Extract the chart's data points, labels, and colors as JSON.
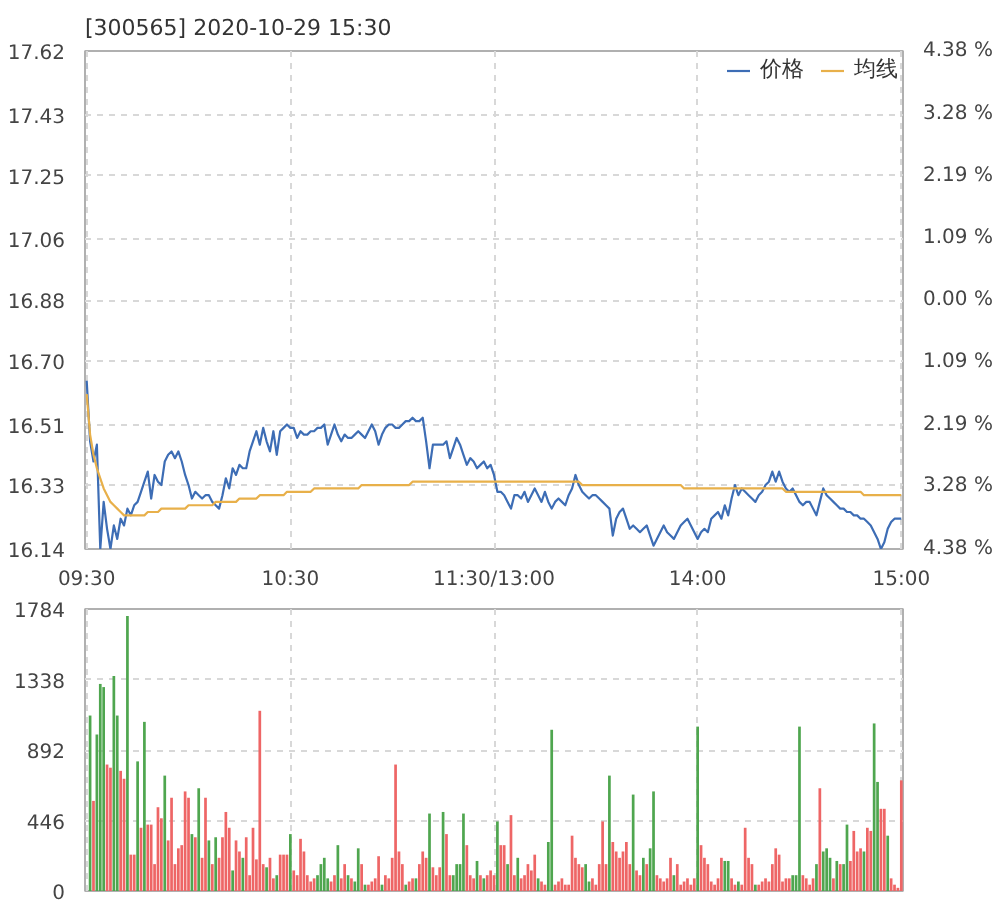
{
  "chart_data": [
    {
      "type": "line",
      "title": "[300565] 2020-10-29 15:30",
      "categories": [
        "09:30",
        null,
        null,
        null,
        null,
        null,
        null,
        null,
        null,
        null,
        null,
        null,
        null,
        null,
        null,
        null,
        null,
        null,
        null,
        null,
        null,
        null,
        null,
        null,
        null,
        null,
        null,
        null,
        null,
        null,
        null,
        null,
        null,
        null,
        null,
        null,
        null,
        null,
        null,
        null,
        null,
        null,
        null,
        null,
        null,
        null,
        null,
        null,
        null,
        null,
        null,
        null,
        null,
        null,
        null,
        null,
        null,
        null,
        null,
        null,
        "10:30",
        null,
        null,
        null,
        null,
        null,
        null,
        null,
        null,
        null,
        null,
        null,
        null,
        null,
        null,
        null,
        null,
        null,
        null,
        null,
        null,
        null,
        null,
        null,
        null,
        null,
        null,
        null,
        null,
        null,
        null,
        null,
        null,
        null,
        null,
        null,
        null,
        null,
        null,
        null,
        null,
        null,
        null,
        null,
        null,
        null,
        null,
        null,
        null,
        null,
        null,
        null,
        null,
        null,
        null,
        null,
        null,
        null,
        null,
        null,
        "11:30/13:00",
        null,
        null,
        null,
        null,
        null,
        null,
        null,
        null,
        null,
        null,
        null,
        null,
        null,
        null,
        null,
        null,
        null,
        null,
        null,
        null,
        null,
        null,
        null,
        null,
        null,
        null,
        null,
        null,
        null,
        null,
        null,
        null,
        null,
        null,
        null,
        null,
        null,
        null,
        null,
        null,
        null,
        null,
        null,
        null,
        null,
        null,
        null,
        null,
        null,
        null,
        null,
        null,
        null,
        null,
        null,
        null,
        null,
        null,
        null,
        "14:00",
        null,
        null,
        null,
        null,
        null,
        null,
        null,
        null,
        null,
        null,
        null,
        null,
        null,
        null,
        null,
        null,
        null,
        null,
        null,
        null,
        null,
        null,
        null,
        null,
        null,
        null,
        null,
        null,
        null,
        null,
        null,
        null,
        null,
        null,
        null,
        null,
        null,
        null,
        null,
        null,
        null,
        null,
        null,
        null,
        null,
        null,
        null,
        null,
        null,
        null,
        null,
        null,
        null,
        null,
        null,
        null,
        null,
        null,
        null,
        "15:00"
      ],
      "ylim": [
        16.14,
        17.62
      ],
      "yticks": [
        17.62,
        17.43,
        17.25,
        17.06,
        16.88,
        {
          "value": 16.7,
          "label": "16.70"
        },
        16.51,
        16.33,
        16.14
      ],
      "y2lim": [
        -4.38,
        4.38
      ],
      "y2ticks": [
        {
          "value": 4.38,
          "label": "4.38 %"
        },
        {
          "value": 3.28,
          "label": "3.28 %"
        },
        {
          "value": 2.19,
          "label": "2.19 %"
        },
        {
          "value": 1.09,
          "label": "1.09 %"
        },
        {
          "value": 0,
          "label": "0.00 %"
        },
        {
          "value": -1.09,
          "label": "1.09 %"
        },
        {
          "value": -2.19,
          "label": "2.19 %"
        },
        {
          "value": -3.28,
          "label": "3.28 %"
        },
        {
          "value": -4.38,
          "label": "4.38 %"
        }
      ],
      "grid": true,
      "legend": "top right",
      "series": [
        {
          "name": "价格",
          "color": "#3d6db5",
          "values": [
            16.64,
            16.46,
            16.4,
            16.45,
            16.14,
            16.28,
            16.2,
            16.14,
            16.21,
            16.17,
            16.23,
            16.21,
            16.26,
            16.24,
            16.27,
            16.28,
            16.31,
            16.34,
            16.37,
            16.29,
            16.36,
            16.34,
            16.33,
            16.4,
            16.42,
            16.43,
            16.41,
            16.43,
            16.4,
            16.36,
            16.33,
            16.29,
            16.31,
            16.3,
            16.29,
            16.3,
            16.3,
            16.28,
            16.27,
            16.26,
            16.3,
            16.35,
            16.32,
            16.38,
            16.36,
            16.39,
            16.38,
            16.38,
            16.43,
            16.46,
            16.49,
            16.45,
            16.5,
            16.46,
            16.43,
            16.49,
            16.42,
            16.49,
            16.5,
            16.51,
            16.5,
            16.5,
            16.47,
            16.49,
            16.48,
            16.48,
            16.49,
            16.49,
            16.5,
            16.5,
            16.51,
            16.45,
            16.48,
            16.51,
            16.48,
            16.46,
            16.48,
            16.47,
            16.47,
            16.48,
            16.49,
            16.48,
            16.47,
            16.49,
            16.51,
            16.49,
            16.45,
            16.48,
            16.5,
            16.51,
            16.51,
            16.5,
            16.5,
            16.51,
            16.52,
            16.52,
            16.53,
            16.52,
            16.52,
            16.53,
            16.46,
            16.38,
            16.45,
            16.45,
            16.45,
            16.45,
            16.46,
            16.41,
            16.44,
            16.47,
            16.45,
            16.42,
            16.39,
            16.41,
            16.4,
            16.38,
            16.39,
            16.4,
            16.38,
            16.39,
            16.36,
            16.31,
            16.31,
            16.3,
            16.28,
            16.26,
            16.3,
            16.3,
            16.29,
            16.31,
            16.28,
            16.3,
            16.32,
            16.3,
            16.28,
            16.31,
            16.28,
            16.26,
            16.28,
            16.29,
            16.28,
            16.27,
            16.3,
            16.32,
            16.36,
            16.33,
            16.31,
            16.3,
            16.29,
            16.3,
            16.3,
            16.29,
            16.28,
            16.27,
            16.26,
            16.18,
            16.23,
            16.25,
            16.26,
            16.23,
            16.2,
            16.21,
            16.2,
            16.19,
            16.2,
            16.21,
            16.18,
            16.15,
            16.17,
            16.19,
            16.21,
            16.19,
            16.18,
            16.17,
            16.19,
            16.21,
            16.22,
            16.23,
            16.21,
            16.19,
            16.17,
            16.19,
            16.2,
            16.19,
            16.23,
            16.24,
            16.25,
            16.23,
            16.27,
            16.24,
            16.29,
            16.33,
            16.3,
            16.32,
            16.31,
            16.3,
            16.29,
            16.28,
            16.3,
            16.31,
            16.33,
            16.34,
            16.37,
            16.34,
            16.37,
            16.34,
            16.32,
            16.31,
            16.32,
            16.3,
            16.28,
            16.27,
            16.28,
            16.28,
            16.26,
            16.24,
            16.28,
            16.32,
            16.3,
            16.29,
            16.28,
            16.27,
            16.26,
            16.26,
            16.25,
            16.25,
            16.24,
            16.24,
            16.23,
            16.23,
            16.22,
            16.21,
            16.19,
            16.17,
            16.14,
            16.16,
            16.2,
            16.22,
            16.23,
            16.23,
            16.23
          ]
        },
        {
          "name": "均线",
          "color": "#e8b04a",
          "values": [
            16.6,
            16.48,
            16.42,
            16.38,
            16.35,
            16.32,
            16.3,
            16.28,
            16.27,
            16.26,
            16.25,
            16.24,
            16.24,
            16.24,
            16.24,
            16.24,
            16.24,
            16.24,
            16.25,
            16.25,
            16.25,
            16.25,
            16.26,
            16.26,
            16.26,
            16.26,
            16.26,
            16.26,
            16.26,
            16.26,
            16.27,
            16.27,
            16.27,
            16.27,
            16.27,
            16.27,
            16.27,
            16.27,
            16.28,
            16.28,
            16.28,
            16.28,
            16.28,
            16.28,
            16.28,
            16.29,
            16.29,
            16.29,
            16.29,
            16.29,
            16.29,
            16.3,
            16.3,
            16.3,
            16.3,
            16.3,
            16.3,
            16.3,
            16.3,
            16.31,
            16.31,
            16.31,
            16.31,
            16.31,
            16.31,
            16.31,
            16.31,
            16.32,
            16.32,
            16.32,
            16.32,
            16.32,
            16.32,
            16.32,
            16.32,
            16.32,
            16.32,
            16.32,
            16.32,
            16.32,
            16.32,
            16.33,
            16.33,
            16.33,
            16.33,
            16.33,
            16.33,
            16.33,
            16.33,
            16.33,
            16.33,
            16.33,
            16.33,
            16.33,
            16.33,
            16.33,
            16.34,
            16.34,
            16.34,
            16.34,
            16.34,
            16.34,
            16.34,
            16.34,
            16.34,
            16.34,
            16.34,
            16.34,
            16.34,
            16.34,
            16.34,
            16.34,
            16.34,
            16.34,
            16.34,
            16.34,
            16.34,
            16.34,
            16.34,
            16.34,
            16.34,
            16.34,
            16.34,
            16.34,
            16.34,
            16.34,
            16.34,
            16.34,
            16.34,
            16.34,
            16.34,
            16.34,
            16.34,
            16.34,
            16.34,
            16.34,
            16.34,
            16.34,
            16.34,
            16.34,
            16.34,
            16.34,
            16.34,
            16.34,
            16.34,
            16.34,
            16.33,
            16.33,
            16.33,
            16.33,
            16.33,
            16.33,
            16.33,
            16.33,
            16.33,
            16.33,
            16.33,
            16.33,
            16.33,
            16.33,
            16.33,
            16.33,
            16.33,
            16.33,
            16.33,
            16.33,
            16.33,
            16.33,
            16.33,
            16.33,
            16.33,
            16.33,
            16.33,
            16.33,
            16.33,
            16.33,
            16.32,
            16.32,
            16.32,
            16.32,
            16.32,
            16.32,
            16.32,
            16.32,
            16.32,
            16.32,
            16.32,
            16.32,
            16.32,
            16.32,
            16.32,
            16.32,
            16.32,
            16.32,
            16.32,
            16.32,
            16.32,
            16.32,
            16.32,
            16.32,
            16.32,
            16.32,
            16.32,
            16.32,
            16.32,
            16.32,
            16.31,
            16.31,
            16.31,
            16.31,
            16.31,
            16.31,
            16.31,
            16.31,
            16.31,
            16.31,
            16.31,
            16.31,
            16.31,
            16.31,
            16.31,
            16.31,
            16.31,
            16.31,
            16.31,
            16.31,
            16.31,
            16.31,
            16.31,
            16.3,
            16.3,
            16.3,
            16.3,
            16.3,
            16.3,
            16.3,
            16.3,
            16.3,
            16.3,
            16.3,
            16.3
          ]
        }
      ]
    },
    {
      "type": "bar",
      "ylim": [
        0,
        1784
      ],
      "yticks": [
        0,
        446,
        892,
        1338,
        1784
      ],
      "grid": true,
      "categories": [
        null,
        null,
        null,
        null,
        null,
        null,
        null,
        null,
        null,
        null,
        null,
        null,
        null,
        null,
        null,
        null,
        null,
        null,
        null,
        null,
        null,
        null,
        null,
        null,
        null,
        null,
        null,
        null,
        null,
        null,
        null,
        null,
        null,
        null,
        null,
        null,
        null,
        null,
        null,
        null,
        null,
        null,
        null,
        null,
        null,
        null,
        null,
        null,
        null,
        null,
        null,
        null,
        null,
        null,
        null,
        null,
        null,
        null,
        null,
        null,
        null,
        null,
        null,
        null,
        null,
        null,
        null,
        null,
        null,
        null,
        null,
        null,
        null,
        null,
        null,
        null,
        null,
        null,
        null,
        null,
        null,
        null,
        null,
        null,
        null,
        null,
        null,
        null,
        null,
        null,
        null,
        null,
        null,
        null,
        null,
        null,
        null,
        null,
        null,
        null,
        null,
        null,
        null,
        null,
        null,
        null,
        null,
        null,
        null,
        null,
        null,
        null,
        null,
        null,
        null,
        null,
        null,
        null,
        null,
        null,
        null,
        null,
        null,
        null,
        null,
        null,
        null,
        null,
        null,
        null,
        null,
        null,
        null,
        null,
        null,
        null,
        null,
        null,
        null,
        null,
        null,
        null,
        null,
        null,
        null,
        null,
        null,
        null,
        null,
        null,
        null,
        null,
        null,
        null,
        null,
        null,
        null,
        null,
        null,
        null,
        null,
        null,
        null,
        null,
        null,
        null,
        null,
        null,
        null,
        null,
        null,
        null,
        null,
        null,
        null,
        null,
        null,
        null,
        null,
        null,
        null,
        null,
        null,
        null,
        null,
        null,
        null,
        null,
        null,
        null,
        null,
        null,
        null,
        null,
        null,
        null,
        null,
        null,
        null,
        null,
        null,
        null,
        null,
        null,
        null,
        null,
        null,
        null,
        null,
        null,
        null,
        null,
        null,
        null,
        null,
        null,
        null,
        null,
        null,
        null,
        null,
        null,
        null,
        null,
        null,
        null,
        null,
        null,
        null,
        null,
        null,
        null,
        null,
        null,
        null,
        null,
        null,
        null,
        null,
        null,
        null
      ],
      "values": [
        null,
        1110,
        570,
        990,
        1310,
        1290,
        800,
        780,
        1360,
        1110,
        760,
        710,
        1740,
        230,
        230,
        820,
        400,
        1070,
        420,
        420,
        170,
        530,
        460,
        730,
        320,
        590,
        170,
        270,
        290,
        630,
        590,
        360,
        340,
        650,
        210,
        590,
        320,
        170,
        340,
        210,
        340,
        500,
        400,
        130,
        320,
        250,
        210,
        340,
        100,
        400,
        200,
        1140,
        170,
        150,
        210,
        80,
        100,
        230,
        230,
        230,
        360,
        130,
        100,
        330,
        250,
        100,
        60,
        80,
        100,
        170,
        210,
        80,
        60,
        100,
        290,
        80,
        170,
        100,
        80,
        60,
        270,
        170,
        40,
        40,
        60,
        80,
        220,
        40,
        100,
        80,
        210,
        800,
        250,
        170,
        40,
        60,
        80,
        80,
        170,
        250,
        210,
        490,
        150,
        100,
        150,
        500,
        360,
        100,
        100,
        170,
        170,
        490,
        290,
        100,
        80,
        190,
        100,
        80,
        100,
        130,
        100,
        440,
        290,
        290,
        170,
        480,
        100,
        210,
        80,
        100,
        170,
        130,
        230,
        80,
        60,
        40,
        310,
        1020,
        40,
        60,
        80,
        40,
        40,
        350,
        210,
        170,
        150,
        170,
        60,
        80,
        40,
        170,
        440,
        170,
        730,
        310,
        250,
        210,
        250,
        310,
        170,
        610,
        130,
        100,
        210,
        170,
        270,
        630,
        100,
        80,
        60,
        80,
        210,
        100,
        170,
        40,
        60,
        80,
        40,
        80,
        1040,
        290,
        210,
        170,
        60,
        40,
        80,
        210,
        190,
        190,
        80,
        40,
        60,
        40,
        400,
        210,
        170,
        40,
        40,
        60,
        80,
        60,
        170,
        270,
        230,
        60,
        80,
        80,
        100,
        100,
        1040,
        100,
        80,
        40,
        80,
        170,
        650,
        250,
        270,
        210,
        80,
        190,
        170,
        170,
        420,
        190,
        380,
        250,
        270,
        250,
        400,
        380,
        1060,
        690,
        520,
        520,
        350,
        80,
        40,
        20,
        700
      ],
      "colors": [
        null,
        "#4fa64f",
        "#ee6666",
        "#4fa64f",
        "#4fa64f",
        "#4fa64f",
        "#ee6666",
        "#ee6666",
        "#4fa64f",
        "#4fa64f",
        "#ee6666",
        "#ee6666",
        "#4fa64f",
        "#ee6666",
        "#ee6666",
        "#4fa64f",
        "#ee6666",
        "#4fa64f",
        "#ee6666",
        "#ee6666",
        "#ee6666",
        "#ee6666",
        "#ee6666",
        "#4fa64f",
        "#ee6666",
        "#ee6666",
        "#ee6666",
        "#ee6666",
        "#ee6666",
        "#ee6666",
        "#ee6666",
        "#4fa64f",
        "#ee6666",
        "#4fa64f",
        "#ee6666",
        "#ee6666",
        "#4fa64f",
        "#ee6666",
        "#4fa64f",
        "#ee6666",
        "#ee6666",
        "#ee6666",
        "#ee6666",
        "#4fa64f",
        "#ee6666",
        "#ee6666",
        "#4fa64f",
        "#ee6666",
        "#ee6666",
        "#ee6666",
        "#ee6666",
        "#ee6666",
        "#ee6666",
        "#4fa64f",
        "#ee6666",
        "#ee6666",
        "#4fa64f",
        "#ee6666",
        "#ee6666",
        "#ee6666",
        "#4fa64f",
        "#ee6666",
        "#ee6666",
        "#ee6666",
        "#ee6666",
        "#ee6666",
        "#ee6666",
        "#ee6666",
        "#4fa64f",
        "#4fa64f",
        "#4fa64f",
        "#4fa64f",
        "#ee6666",
        "#ee6666",
        "#4fa64f",
        "#ee6666",
        "#ee6666",
        "#4fa64f",
        "#ee6666",
        "#4fa64f",
        "#4fa64f",
        "#ee6666",
        "#4fa64f",
        "#ee6666",
        "#ee6666",
        "#ee6666",
        "#ee6666",
        "#4fa64f",
        "#ee6666",
        "#ee6666",
        "#ee6666",
        "#ee6666",
        "#ee6666",
        "#ee6666",
        "#4fa64f",
        "#ee6666",
        "#ee6666",
        "#4fa64f",
        "#ee6666",
        "#ee6666",
        "#ee6666",
        "#4fa64f",
        "#ee6666",
        "#ee6666",
        "#ee6666",
        "#4fa64f",
        "#ee6666",
        "#ee6666",
        "#4fa64f",
        "#4fa64f",
        "#4fa64f",
        "#4fa64f",
        "#ee6666",
        "#ee6666",
        "#ee6666",
        "#4fa64f",
        "#ee6666",
        "#4fa64f",
        "#ee6666",
        "#ee6666",
        "#ee6666",
        "#4fa64f",
        "#ee6666",
        "#ee6666",
        "#4fa64f",
        "#ee6666",
        "#ee6666",
        "#4fa64f",
        "#ee6666",
        "#ee6666",
        "#ee6666",
        "#ee6666",
        "#ee6666",
        "#4fa64f",
        "#ee6666",
        "#ee6666",
        "#4fa64f",
        "#4fa64f",
        "#ee6666",
        "#ee6666",
        "#ee6666",
        "#ee6666",
        "#ee6666",
        "#ee6666",
        "#ee6666",
        "#ee6666",
        "#ee6666",
        "#4fa64f",
        "#4fa64f",
        "#ee6666",
        "#ee6666",
        "#ee6666",
        "#ee6666",
        "#ee6666",
        "#4fa64f",
        "#ee6666",
        "#ee6666",
        "#ee6666",
        "#ee6666",
        "#ee6666",
        "#ee6666",
        "#4fa64f",
        "#ee6666",
        "#ee6666",
        "#4fa64f",
        "#ee6666",
        "#4fa64f",
        "#4fa64f",
        "#ee6666",
        "#ee6666",
        "#ee6666",
        "#ee6666",
        "#ee6666",
        "#4fa64f",
        "#ee6666",
        "#ee6666",
        "#ee6666",
        "#ee6666",
        "#ee6666",
        "#ee6666",
        "#4fa64f",
        "#ee6666",
        "#ee6666",
        "#ee6666",
        "#ee6666",
        "#ee6666",
        "#ee6666",
        "#ee6666",
        "#4fa64f",
        "#4fa64f",
        "#ee6666",
        "#ee6666",
        "#4fa64f",
        "#ee6666",
        "#ee6666",
        "#ee6666",
        "#ee6666",
        "#4fa64f",
        "#ee6666",
        "#ee6666",
        "#ee6666",
        "#ee6666",
        "#ee6666",
        "#ee6666",
        "#ee6666",
        "#ee6666",
        "#ee6666",
        "#ee6666",
        "#4fa64f",
        "#4fa64f",
        "#4fa64f",
        "#ee6666",
        "#ee6666",
        "#ee6666",
        "#ee6666",
        "#4fa64f",
        "#ee6666",
        "#4fa64f",
        "#4fa64f",
        "#4fa64f",
        "#ee6666",
        "#4fa64f",
        "#ee6666",
        "#4fa64f",
        "#4fa64f",
        "#ee6666",
        "#ee6666",
        "#ee6666",
        "#ee6666",
        "#4fa64f",
        "#ee6666",
        "#ee6666",
        "#4fa64f",
        "#4fa64f",
        "#ee6666",
        "#ee6666",
        "#4fa64f",
        "#ee6666",
        "#ee6666",
        "#ee6666",
        "#ee6666"
      ]
    }
  ]
}
